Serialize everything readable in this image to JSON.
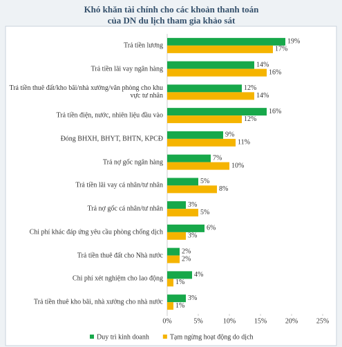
{
  "chart_data": {
    "type": "barh",
    "title": "Khó khăn tài chính cho các khoản thanh toán",
    "subtitle": "của DN du lịch tham gia khảo sát",
    "categories": [
      "Trả tiền lương",
      "Trả tiền lãi vay ngân hàng",
      "Trả tiền thuê đất/kho bãi/nhà xưởng/văn phòng cho khu vực tư nhân",
      "Trả tiền điện, nước, nhiên liệu đầu vào",
      "Đóng BHXH, BHYT, BHTN, KPCĐ",
      "Trả nợ gốc ngân hàng",
      "Trả tiền lãi vay cá nhân/tư nhân",
      "Trả nợ gốc cá nhân/tư nhân",
      "Chi phí khác đáp ứng yêu cầu phòng chống dịch",
      "Trả tiền thuê đất cho Nhà nước",
      "Chi phí xét nghiệm cho lao động",
      "Trả tiền thuê kho bãi, nhà xưởng cho nhà nước"
    ],
    "series": [
      {
        "name": "Duy trì kinh doanh",
        "color": "#17a84a",
        "values": [
          19,
          14,
          12,
          16,
          9,
          7,
          5,
          3,
          6,
          2,
          4,
          3
        ],
        "value_labels": [
          "19%",
          "14%",
          "12%",
          "16%",
          "9%",
          "7%",
          "5%",
          "3%",
          "6%",
          "2%",
          "4%",
          "3%"
        ]
      },
      {
        "name": "Tạm ngừng hoạt động do dịch",
        "color": "#f5b400",
        "values": [
          17,
          16,
          14,
          12,
          11,
          10,
          8,
          5,
          3,
          2,
          1,
          1
        ],
        "value_labels": [
          "17%",
          "16%",
          "14%",
          "12%",
          "11%",
          "10%",
          "8%",
          "5%",
          "3%",
          "2%",
          "1%",
          "1%"
        ]
      }
    ],
    "xlim": [
      0,
      25
    ],
    "xticks": [
      {
        "value": 0,
        "label": "0%"
      },
      {
        "value": 5,
        "label": "5%"
      },
      {
        "value": 10,
        "label": "10%"
      },
      {
        "value": 15,
        "label": "15%"
      },
      {
        "value": 20,
        "label": "20%"
      },
      {
        "value": 25,
        "label": "25%"
      }
    ],
    "legend": "bottom"
  }
}
